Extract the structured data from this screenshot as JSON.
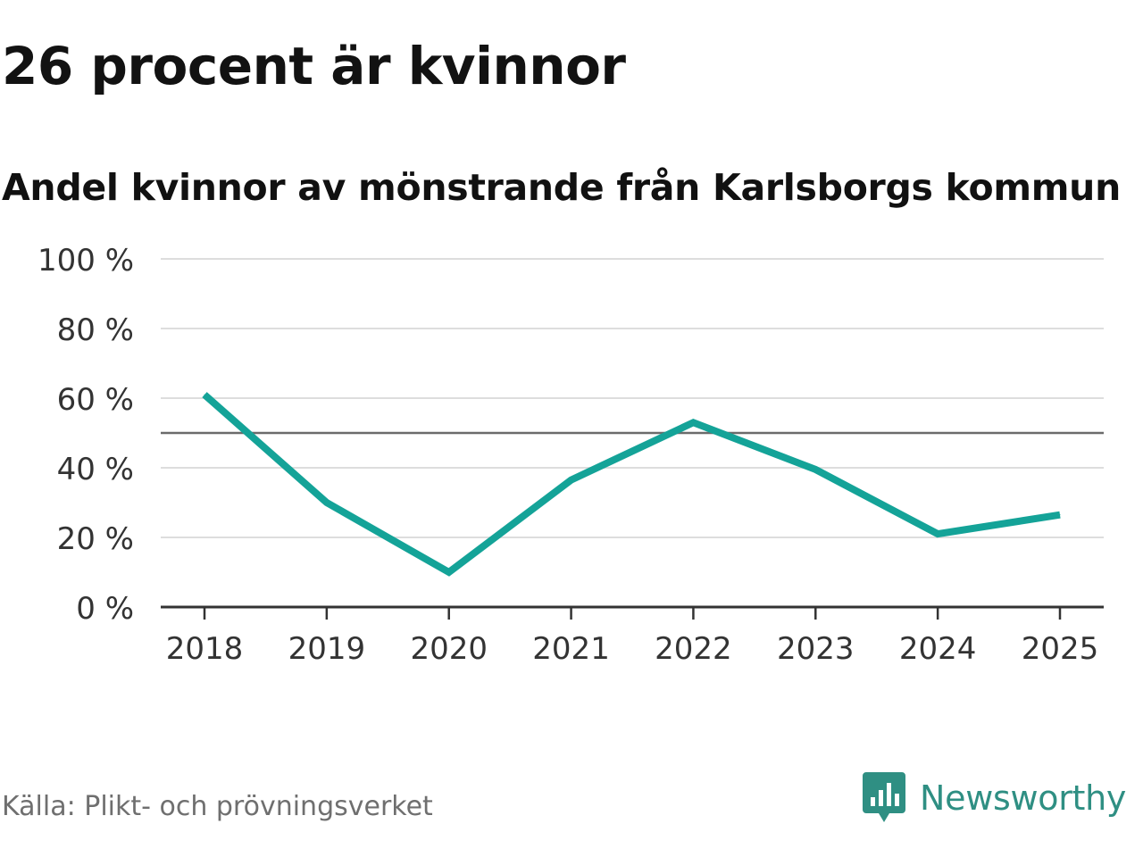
{
  "header": {
    "title": "26 procent är kvinnor",
    "subtitle": "Andel kvinnor av mönstrande från Karlsborgs kommun"
  },
  "footer": {
    "source": "Källa: Plikt- och prövningsverket",
    "brand": "Newsworthy",
    "brand_icon": "newsworthy-logo-icon"
  },
  "colors": {
    "line": "#14a398",
    "grid": "#dddddd",
    "axis": "#333333",
    "reference": "#6b6b6b",
    "brand": "#2f8f83"
  },
  "chart_data": {
    "type": "line",
    "title": "",
    "xlabel": "",
    "ylabel": "",
    "x": [
      "2018",
      "2019",
      "2020",
      "2021",
      "2022",
      "2023",
      "2024",
      "2025"
    ],
    "series": [
      {
        "values": [
          61,
          30,
          10,
          36.5,
          53,
          39.5,
          21,
          26.5
        ]
      }
    ],
    "ylim": [
      0,
      100
    ],
    "yticks": [
      0,
      20,
      40,
      60,
      80,
      100
    ],
    "ytick_labels": [
      "0 %",
      "20 %",
      "40 %",
      "60 %",
      "80 %",
      "100 %"
    ],
    "reference_line": 50,
    "grid": true,
    "legend": "none"
  }
}
